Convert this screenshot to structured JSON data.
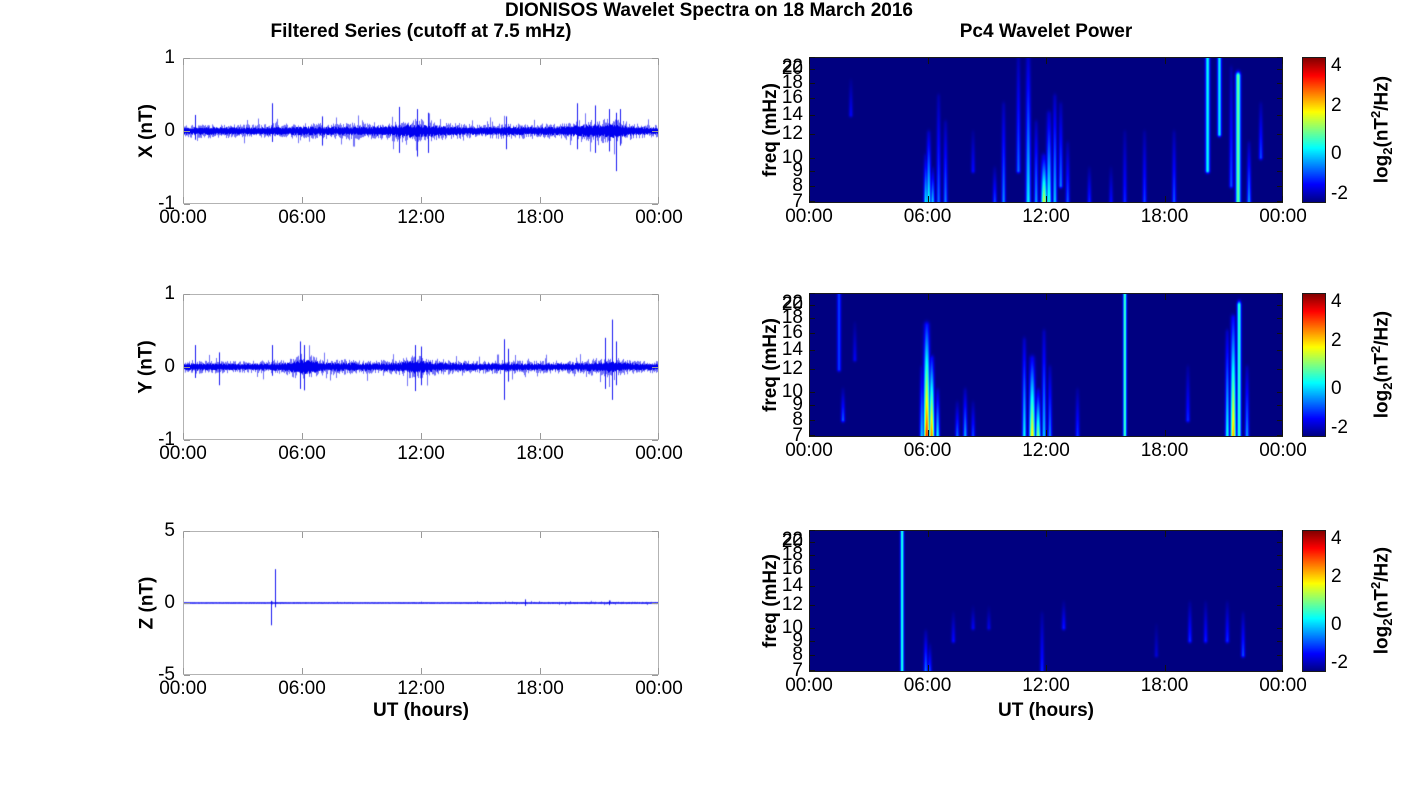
{
  "figure": {
    "title": "DIONISOS Wavelet Spectra on 18 March 2016",
    "background_color": "#ffffff",
    "trace_color": "#0000f0",
    "heatmap_background_color": "#000085"
  },
  "left_column": {
    "subtitle": "Filtered Series (cutoff at 7.5 mHz)",
    "xlabel": "UT (hours)",
    "xtick_labels": [
      "00:00",
      "06:00",
      "12:00",
      "18:00",
      "00:00"
    ],
    "panels": [
      {
        "ylabel": "X (nT)",
        "ytick_labels": [
          "1",
          "0",
          "-1"
        ]
      },
      {
        "ylabel": "Y (nT)",
        "ytick_labels": [
          "1",
          "0",
          "-1"
        ]
      },
      {
        "ylabel": "Z (nT)",
        "ytick_labels": [
          "5",
          "0",
          "-5"
        ]
      }
    ]
  },
  "right_column": {
    "subtitle": "Pc4 Wavelet Power",
    "xlabel": "UT (hours)",
    "ylabel": "freq (mHz)",
    "xtick_labels": [
      "00:00",
      "06:00",
      "12:00",
      "18:00",
      "00:00"
    ],
    "freq_tick_labels": [
      "22",
      "20",
      "18",
      "16",
      "14",
      "12",
      "10",
      "9",
      "8",
      "7"
    ],
    "colorbar": {
      "tick_labels": [
        "4",
        "2",
        "0",
        "-2"
      ],
      "label_parts": {
        "pre": "log",
        "sub": "2",
        "mid": "(nT",
        "sup": "2",
        "post": "/Hz)"
      }
    }
  },
  "chart_data": [
    {
      "type": "line",
      "name": "X filtered series",
      "ylabel": "X (nT)",
      "xlabel": "UT (hours)",
      "x_range_hours": [
        0,
        24
      ],
      "xticks_hours": [
        0,
        6,
        12,
        18,
        24
      ],
      "ylim": [
        -1,
        1
      ],
      "yticks": [
        1,
        0,
        -1
      ],
      "seed": 7,
      "noise_envelope_nT": [
        [
          0,
          0.09
        ],
        [
          1,
          0.1
        ],
        [
          2,
          0.1
        ],
        [
          3,
          0.09
        ],
        [
          4,
          0.1
        ],
        [
          4.5,
          0.11
        ],
        [
          5,
          0.1
        ],
        [
          6,
          0.11
        ],
        [
          7,
          0.11
        ],
        [
          8,
          0.11
        ],
        [
          9,
          0.12
        ],
        [
          10,
          0.12
        ],
        [
          10.8,
          0.15
        ],
        [
          11.5,
          0.17
        ],
        [
          12,
          0.16
        ],
        [
          12.5,
          0.15
        ],
        [
          13,
          0.13
        ],
        [
          14,
          0.11
        ],
        [
          15,
          0.1
        ],
        [
          16,
          0.11
        ],
        [
          17,
          0.11
        ],
        [
          18,
          0.11
        ],
        [
          19,
          0.11
        ],
        [
          19.8,
          0.14
        ],
        [
          20.5,
          0.17
        ],
        [
          21,
          0.16
        ],
        [
          21.8,
          0.18
        ],
        [
          22.3,
          0.14
        ],
        [
          23,
          0.1
        ],
        [
          24,
          0.09
        ]
      ],
      "spikes_nT": [
        [
          0.6,
          0.22,
          -0.12
        ],
        [
          4.5,
          0.38,
          -0.15
        ],
        [
          7.0,
          0.2,
          -0.2
        ],
        [
          10.9,
          0.33,
          -0.3
        ],
        [
          11.8,
          0.3,
          -0.35
        ],
        [
          12.4,
          0.25,
          -0.3
        ],
        [
          16.3,
          0.2,
          -0.25
        ],
        [
          19.9,
          0.38,
          -0.25
        ],
        [
          20.8,
          0.35,
          -0.3
        ],
        [
          21.5,
          0.3,
          -0.28
        ],
        [
          21.9,
          0.25,
          -0.55
        ],
        [
          22.1,
          0.3,
          -0.2
        ]
      ]
    },
    {
      "type": "line",
      "name": "Y filtered series",
      "ylabel": "Y (nT)",
      "xlabel": "UT (hours)",
      "x_range_hours": [
        0,
        24
      ],
      "xticks_hours": [
        0,
        6,
        12,
        18,
        24
      ],
      "ylim": [
        -1,
        1
      ],
      "yticks": [
        1,
        0,
        -1
      ],
      "seed": 13,
      "noise_envelope_nT": [
        [
          0,
          0.08
        ],
        [
          0.5,
          0.1
        ],
        [
          1,
          0.09
        ],
        [
          2,
          0.09
        ],
        [
          3,
          0.08
        ],
        [
          4,
          0.09
        ],
        [
          5,
          0.1
        ],
        [
          5.6,
          0.15
        ],
        [
          6,
          0.19
        ],
        [
          6.4,
          0.17
        ],
        [
          7,
          0.12
        ],
        [
          8,
          0.11
        ],
        [
          9,
          0.1
        ],
        [
          10,
          0.1
        ],
        [
          11,
          0.12
        ],
        [
          11.6,
          0.17
        ],
        [
          12,
          0.16
        ],
        [
          12.5,
          0.13
        ],
        [
          13,
          0.11
        ],
        [
          14,
          0.1
        ],
        [
          15,
          0.09
        ],
        [
          16,
          0.1
        ],
        [
          17,
          0.09
        ],
        [
          18,
          0.09
        ],
        [
          19,
          0.09
        ],
        [
          20,
          0.1
        ],
        [
          21,
          0.13
        ],
        [
          21.6,
          0.15
        ],
        [
          22,
          0.12
        ],
        [
          23,
          0.09
        ],
        [
          24,
          0.08
        ]
      ],
      "spikes_nT": [
        [
          0.6,
          0.3,
          -0.15
        ],
        [
          1.8,
          0.2,
          -0.25
        ],
        [
          4.5,
          0.3,
          -0.12
        ],
        [
          5.9,
          0.35,
          -0.3
        ],
        [
          6.1,
          0.3,
          -0.32
        ],
        [
          11.7,
          0.3,
          -0.33
        ],
        [
          12.0,
          0.28,
          -0.25
        ],
        [
          16.2,
          0.38,
          -0.45
        ],
        [
          16.4,
          0.25,
          -0.2
        ],
        [
          21.3,
          0.4,
          -0.3
        ],
        [
          21.7,
          0.65,
          -0.45
        ],
        [
          21.9,
          0.35,
          -0.25
        ]
      ]
    },
    {
      "type": "line",
      "name": "Z filtered series",
      "ylabel": "Z (nT)",
      "xlabel": "UT (hours)",
      "x_range_hours": [
        0,
        24
      ],
      "xticks_hours": [
        0,
        6,
        12,
        18,
        24
      ],
      "ylim": [
        -5,
        5
      ],
      "yticks": [
        5,
        0,
        -5
      ],
      "seed": 21,
      "noise_envelope_nT": [
        [
          0,
          0.05
        ],
        [
          2,
          0.05
        ],
        [
          4,
          0.06
        ],
        [
          6,
          0.06
        ],
        [
          8,
          0.05
        ],
        [
          10,
          0.05
        ],
        [
          12,
          0.06
        ],
        [
          14,
          0.06
        ],
        [
          16,
          0.08
        ],
        [
          18,
          0.08
        ],
        [
          20,
          0.09
        ],
        [
          22,
          0.09
        ],
        [
          24,
          0.08
        ]
      ],
      "spikes_nT": [
        [
          4.45,
          0.15,
          -1.55
        ],
        [
          4.65,
          2.35,
          -0.3
        ],
        [
          17.3,
          0.25,
          -0.2
        ],
        [
          21.5,
          0.18,
          -0.15
        ]
      ]
    },
    {
      "type": "heatmap",
      "name": "X Pc4 wavelet power",
      "ylabel": "freq (mHz)",
      "yscale": "log",
      "x_range_hours": [
        0,
        24
      ],
      "xticks_hours": [
        0,
        6,
        12,
        18,
        24
      ],
      "flim_mHz": [
        7,
        22
      ],
      "freq_ticks_mHz": [
        22,
        20,
        18,
        16,
        14,
        12,
        10,
        9,
        8,
        7
      ],
      "clim_log2": [
        -2,
        4
      ],
      "colorbar_ticks": [
        4,
        2,
        0,
        -2
      ],
      "colormap": "jet",
      "background_log2": -2,
      "events": [
        {
          "t": 2.1,
          "f1": 14,
          "f2": 18,
          "v": -1.3,
          "w": 1.4
        },
        {
          "t": 5.9,
          "f1": 7,
          "f2": 10,
          "v": 0.2,
          "w": 1.4
        },
        {
          "t": 6.05,
          "f1": 7,
          "f2": 12,
          "v": 0.45,
          "w": 1.5
        },
        {
          "t": 6.25,
          "f1": 7,
          "f2": 9,
          "v": 0.0,
          "w": 1.4
        },
        {
          "t": 6.55,
          "f1": 7,
          "f2": 16,
          "v": -0.6,
          "w": 1.4
        },
        {
          "t": 6.9,
          "f1": 7,
          "f2": 13,
          "v": -0.5,
          "w": 1.4
        },
        {
          "t": 8.3,
          "f1": 9,
          "f2": 12,
          "v": -1.2,
          "w": 1.4
        },
        {
          "t": 9.4,
          "f1": 7,
          "f2": 9,
          "v": -0.8,
          "w": 1.4
        },
        {
          "t": 9.85,
          "f1": 7,
          "f2": 15,
          "v": -0.4,
          "w": 1.4
        },
        {
          "t": 10.6,
          "f1": 9,
          "f2": 22,
          "v": -0.6,
          "w": 1.4
        },
        {
          "t": 11.1,
          "f1": 7,
          "f2": 22,
          "v": 0.25,
          "w": 1.7
        },
        {
          "t": 11.5,
          "f1": 7,
          "f2": 13,
          "v": -0.3,
          "w": 1.4
        },
        {
          "t": 11.9,
          "f1": 7,
          "f2": 10,
          "v": 1.6,
          "w": 2.0
        },
        {
          "t": 12.15,
          "f1": 7,
          "f2": 14,
          "v": 0.6,
          "w": 1.7
        },
        {
          "t": 12.45,
          "f1": 7,
          "f2": 16,
          "v": 0.0,
          "w": 1.4
        },
        {
          "t": 12.75,
          "f1": 8,
          "f2": 15,
          "v": -0.5,
          "w": 1.4
        },
        {
          "t": 13.1,
          "f1": 7,
          "f2": 11,
          "v": -0.7,
          "w": 1.4
        },
        {
          "t": 14.2,
          "f1": 7,
          "f2": 9,
          "v": -1.0,
          "w": 1.4
        },
        {
          "t": 15.3,
          "f1": 7,
          "f2": 9,
          "v": -1.2,
          "w": 1.4
        },
        {
          "t": 16.0,
          "f1": 7,
          "f2": 12,
          "v": -1.0,
          "w": 1.4
        },
        {
          "t": 17.0,
          "f1": 7,
          "f2": 12,
          "v": -0.85,
          "w": 1.4
        },
        {
          "t": 18.5,
          "f1": 7,
          "f2": 12,
          "v": -0.7,
          "w": 1.4
        },
        {
          "t": 20.2,
          "f1": 9,
          "f2": 22,
          "v": 0.3,
          "w": 1.5,
          "u": true
        },
        {
          "t": 20.8,
          "f1": 12,
          "f2": 22,
          "v": 0.2,
          "w": 1.4,
          "u": true
        },
        {
          "t": 21.4,
          "f1": 8,
          "f2": 20,
          "v": -0.8,
          "w": 1.4
        },
        {
          "t": 21.75,
          "f1": 7,
          "f2": 19,
          "v": 0.9,
          "w": 1.7,
          "u": true
        },
        {
          "t": 22.3,
          "f1": 7,
          "f2": 11,
          "v": -0.3,
          "w": 1.4
        },
        {
          "t": 22.9,
          "f1": 10,
          "f2": 15,
          "v": -0.8,
          "w": 1.4
        }
      ]
    },
    {
      "type": "heatmap",
      "name": "Y Pc4 wavelet power",
      "ylabel": "freq (mHz)",
      "yscale": "log",
      "x_range_hours": [
        0,
        24
      ],
      "xticks_hours": [
        0,
        6,
        12,
        18,
        24
      ],
      "flim_mHz": [
        7,
        22
      ],
      "freq_ticks_mHz": [
        22,
        20,
        18,
        16,
        14,
        12,
        10,
        9,
        8,
        7
      ],
      "clim_log2": [
        -2,
        4
      ],
      "colorbar_ticks": [
        4,
        2,
        0,
        -2
      ],
      "colormap": "jet",
      "background_log2": -2,
      "events": [
        {
          "t": 1.5,
          "f1": 12,
          "f2": 22,
          "v": -0.9,
          "w": 1.4,
          "u": true
        },
        {
          "t": 1.7,
          "f1": 8,
          "f2": 10,
          "v": -0.7,
          "w": 1.4
        },
        {
          "t": 2.3,
          "f1": 13,
          "f2": 17,
          "v": -1.3,
          "w": 1.4
        },
        {
          "t": 5.7,
          "f1": 7,
          "f2": 12,
          "v": 0.0,
          "w": 1.4
        },
        {
          "t": 5.95,
          "f1": 7,
          "f2": 17,
          "v": 3.1,
          "w": 2.0
        },
        {
          "t": 6.2,
          "f1": 7,
          "f2": 13,
          "v": 2.6,
          "w": 1.7
        },
        {
          "t": 6.5,
          "f1": 7,
          "f2": 10,
          "v": 0.3,
          "w": 1.4
        },
        {
          "t": 7.5,
          "f1": 7,
          "f2": 9,
          "v": -0.6,
          "w": 1.4
        },
        {
          "t": 7.9,
          "f1": 7,
          "f2": 10,
          "v": -0.2,
          "w": 1.4
        },
        {
          "t": 8.3,
          "f1": 7,
          "f2": 9,
          "v": -0.8,
          "w": 1.4
        },
        {
          "t": 10.9,
          "f1": 7,
          "f2": 15,
          "v": 0.3,
          "w": 1.4
        },
        {
          "t": 11.3,
          "f1": 7,
          "f2": 13,
          "v": 1.9,
          "w": 2.0
        },
        {
          "t": 11.6,
          "f1": 7,
          "f2": 10,
          "v": 1.2,
          "w": 1.7
        },
        {
          "t": 11.9,
          "f1": 7,
          "f2": 16,
          "v": 0.0,
          "w": 1.4
        },
        {
          "t": 12.2,
          "f1": 7,
          "f2": 12,
          "v": -0.4,
          "w": 1.4
        },
        {
          "t": 13.6,
          "f1": 7,
          "f2": 10,
          "v": -0.9,
          "w": 1.4
        },
        {
          "t": 16.0,
          "f1": 7,
          "f2": 22,
          "v": 0.7,
          "w": 1.2,
          "u": true
        },
        {
          "t": 19.2,
          "f1": 8,
          "f2": 12,
          "v": -1.0,
          "w": 1.4
        },
        {
          "t": 21.2,
          "f1": 7,
          "f2": 16,
          "v": 0.4,
          "w": 1.4
        },
        {
          "t": 21.5,
          "f1": 7,
          "f2": 18,
          "v": 2.3,
          "w": 1.8
        },
        {
          "t": 21.8,
          "f1": 7,
          "f2": 20,
          "v": 0.6,
          "w": 1.4,
          "u": true
        },
        {
          "t": 22.2,
          "f1": 7,
          "f2": 12,
          "v": -0.3,
          "w": 1.4
        }
      ]
    },
    {
      "type": "heatmap",
      "name": "Z Pc4 wavelet power",
      "ylabel": "freq (mHz)",
      "yscale": "log",
      "x_range_hours": [
        0,
        24
      ],
      "xticks_hours": [
        0,
        6,
        12,
        18,
        24
      ],
      "flim_mHz": [
        7,
        22
      ],
      "freq_ticks_mHz": [
        22,
        20,
        18,
        16,
        14,
        12,
        10,
        9,
        8,
        7
      ],
      "clim_log2": [
        -2,
        4
      ],
      "colorbar_ticks": [
        4,
        2,
        0,
        -2
      ],
      "colormap": "jet",
      "background_log2": -2,
      "events": [
        {
          "t": 4.7,
          "f1": 7,
          "f2": 22,
          "v": 0.5,
          "w": 1.2,
          "u": true
        },
        {
          "t": 5.9,
          "f1": 7,
          "f2": 9.5,
          "v": -0.5,
          "w": 1.4
        },
        {
          "t": 6.1,
          "f1": 7,
          "f2": 8.5,
          "v": -0.8,
          "w": 1.4
        },
        {
          "t": 7.3,
          "f1": 9,
          "f2": 11,
          "v": -1.2,
          "w": 1.4
        },
        {
          "t": 8.3,
          "f1": 10,
          "f2": 11.5,
          "v": -1.3,
          "w": 1.4
        },
        {
          "t": 9.1,
          "f1": 10,
          "f2": 11.5,
          "v": -1.4,
          "w": 1.4
        },
        {
          "t": 11.8,
          "f1": 7,
          "f2": 11,
          "v": -1.0,
          "w": 1.4
        },
        {
          "t": 12.9,
          "f1": 10,
          "f2": 12,
          "v": -1.1,
          "w": 1.4
        },
        {
          "t": 17.6,
          "f1": 8,
          "f2": 10,
          "v": -1.5,
          "w": 1.4
        },
        {
          "t": 19.3,
          "f1": 9,
          "f2": 12,
          "v": -1.0,
          "w": 1.4
        },
        {
          "t": 20.1,
          "f1": 9,
          "f2": 12,
          "v": -1.1,
          "w": 1.4
        },
        {
          "t": 21.2,
          "f1": 9,
          "f2": 12,
          "v": -1.0,
          "w": 1.4
        },
        {
          "t": 22.0,
          "f1": 8,
          "f2": 11,
          "v": -0.8,
          "w": 1.4
        }
      ]
    }
  ]
}
